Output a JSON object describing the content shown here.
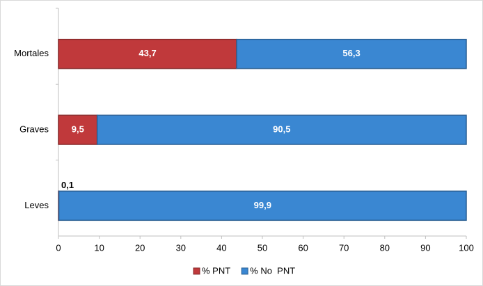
{
  "chart_data": {
    "type": "stacked-bar-horizontal",
    "categories": [
      "Mortales",
      "Graves",
      "Leves"
    ],
    "series": [
      {
        "name": "% PNT",
        "color": "#c0393b",
        "values": [
          43.7,
          9.5,
          0.1
        ],
        "value_labels": [
          "43,7",
          "9,5",
          "0,1"
        ]
      },
      {
        "name": "% No  PNT",
        "color": "#3a87d2",
        "values": [
          56.3,
          90.5,
          99.9
        ],
        "value_labels": [
          "56,3",
          "90,5",
          "99,9"
        ]
      }
    ],
    "xlim": [
      0,
      100
    ],
    "xticks": [
      0,
      10,
      20,
      30,
      40,
      50,
      60,
      70,
      80,
      90,
      100
    ],
    "legend": "bottom"
  }
}
